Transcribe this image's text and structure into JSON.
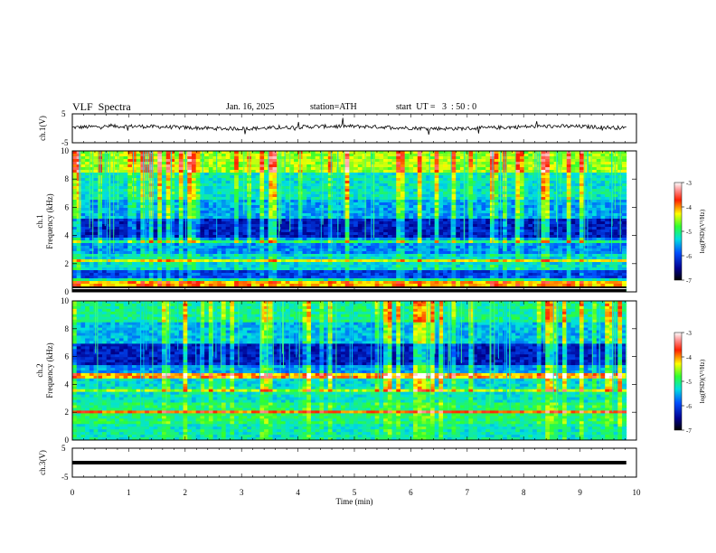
{
  "header": {
    "title": "VLF  Spectra",
    "date": "Jan. 16, 2025",
    "station": "station=ATH",
    "start": "start  UT =   3  : 50 : 0"
  },
  "chart_data": [
    {
      "type": "line",
      "title": "",
      "ylabel": "ch.1(V)",
      "ylim": [
        -5,
        5
      ],
      "y_ticks": [
        "5",
        "-5"
      ],
      "xlim": [
        0,
        10
      ],
      "description_level": 0.3
    },
    {
      "type": "heatmap",
      "ylabel": [
        "ch.1",
        "Frequency  (kHz)"
      ],
      "ylim": [
        0,
        10
      ],
      "y_ticks": [
        "0",
        "2",
        "4",
        "6",
        "8",
        "10"
      ],
      "xlim": [
        0,
        10
      ],
      "colorbar": {
        "label": "log(PSD)(V²/Hz)",
        "range": [
          -7,
          -3
        ],
        "ticks": [
          "-3",
          "-4",
          "-5",
          "-6",
          "-7"
        ]
      }
    },
    {
      "type": "heatmap",
      "ylabel": [
        "ch.2",
        "Frequency  (kHz)"
      ],
      "ylim": [
        0,
        10
      ],
      "y_ticks": [
        "0",
        "2",
        "4",
        "6",
        "8",
        "10"
      ],
      "xlim": [
        0,
        10
      ],
      "colorbar": {
        "label": "log(PSD)(V²/Hz)",
        "range": [
          -7,
          -3
        ],
        "ticks": [
          "-3",
          "-4",
          "-5",
          "-6",
          "-7"
        ]
      }
    },
    {
      "type": "line",
      "ylabel": "ch.3(V)",
      "ylim": [
        -5,
        5
      ],
      "y_ticks": [
        "5",
        "-5"
      ],
      "xlim": [
        0,
        10
      ],
      "level": 0.0
    }
  ],
  "x_axis": {
    "label": "Time  (min)",
    "ticks": [
      "0",
      "1",
      "2",
      "3",
      "4",
      "5",
      "6",
      "7",
      "8",
      "9",
      "10"
    ],
    "data_end": 9.82
  }
}
